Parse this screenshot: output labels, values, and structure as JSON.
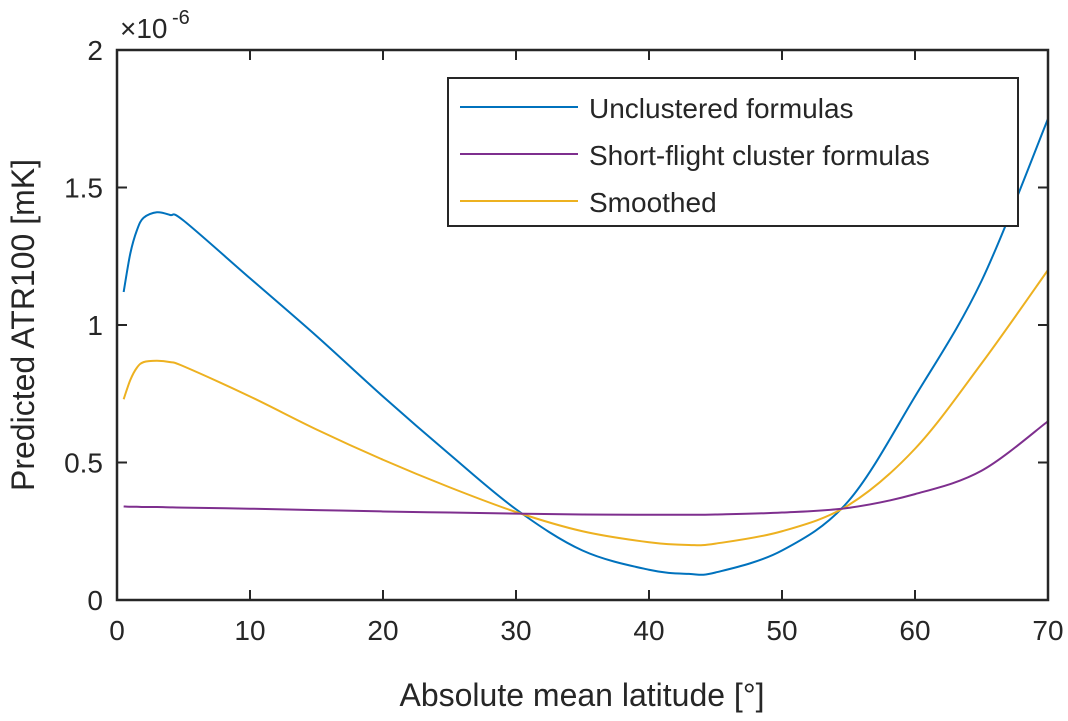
{
  "chart_data": {
    "type": "line",
    "title": "",
    "xlabel": "Absolute mean latitude [°]",
    "ylabel": "Predicted ATR100 [mK]",
    "y_exponent_label": "×10",
    "y_exponent": "-6",
    "xlim": [
      0,
      70
    ],
    "ylim": [
      0,
      2
    ],
    "x_ticks": [
      "0",
      "10",
      "20",
      "30",
      "40",
      "50",
      "60",
      "70"
    ],
    "y_ticks": [
      "0",
      "0.5",
      "1",
      "1.5",
      "2"
    ],
    "grid": false,
    "legend_position": "top-right",
    "x": [
      0.5,
      1,
      1.5,
      2,
      3,
      4,
      5,
      10,
      15,
      20,
      25,
      30,
      35,
      40,
      43,
      45,
      50,
      55,
      60,
      65,
      70
    ],
    "series": [
      {
        "name": "Unclustered formulas",
        "color": "#0072BD",
        "values": [
          1.12,
          1.26,
          1.345,
          1.39,
          1.41,
          1.4,
          1.38,
          1.17,
          0.96,
          0.74,
          0.53,
          0.33,
          0.18,
          0.11,
          0.095,
          0.1,
          0.18,
          0.36,
          0.74,
          1.16,
          1.75
        ]
      },
      {
        "name": "Short-flight cluster formulas",
        "color": "#7E2F8E",
        "values": [
          0.34,
          0.339,
          0.339,
          0.338,
          0.338,
          0.337,
          0.336,
          0.332,
          0.327,
          0.322,
          0.318,
          0.314,
          0.311,
          0.31,
          0.31,
          0.311,
          0.318,
          0.335,
          0.385,
          0.47,
          0.65
        ]
      },
      {
        "name": "Smoothed",
        "color": "#EDB120",
        "values": [
          0.73,
          0.8,
          0.845,
          0.865,
          0.87,
          0.865,
          0.85,
          0.74,
          0.62,
          0.51,
          0.41,
          0.32,
          0.25,
          0.21,
          0.2,
          0.205,
          0.25,
          0.345,
          0.55,
          0.86,
          1.2
        ]
      }
    ]
  }
}
